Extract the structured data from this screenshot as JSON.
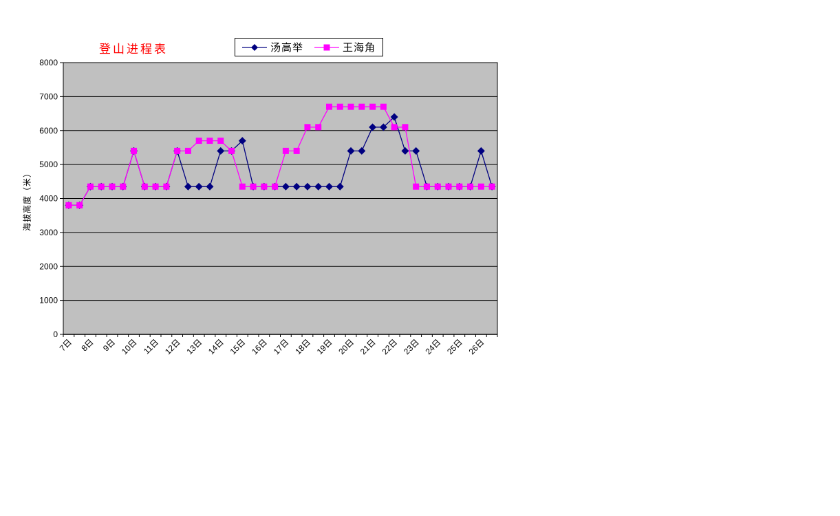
{
  "chart_data": {
    "type": "line",
    "title": "登山进程表",
    "title_color": "#ff0000",
    "ylabel": "海拔高度（米）",
    "ylim": [
      0,
      8000
    ],
    "y_ticks": [
      0,
      1000,
      2000,
      3000,
      4000,
      5000,
      6000,
      7000,
      8000
    ],
    "x_labels": [
      "7日",
      "8日",
      "9日",
      "10日",
      "11日",
      "12日",
      "13日",
      "14日",
      "15日",
      "16日",
      "17日",
      "18日",
      "19日",
      "20日",
      "21日",
      "22日",
      "23日",
      "24日",
      "25日",
      "26日"
    ],
    "x_label_interval": 2,
    "n_points": 40,
    "grid": "horizontal",
    "legend_position": "top",
    "plot_bg": "#c0c0c0",
    "gridline_color": "#000000",
    "series": [
      {
        "name": "汤高举",
        "color": "#000080",
        "marker": "diamond",
        "values": [
          3800,
          3800,
          4350,
          4350,
          4350,
          4350,
          5400,
          4350,
          4350,
          4350,
          5400,
          4350,
          4350,
          4350,
          5400,
          5400,
          5700,
          4350,
          4350,
          4350,
          4350,
          4350,
          4350,
          4350,
          4350,
          4350,
          5400,
          5400,
          6100,
          6100,
          6400,
          5400,
          5400,
          4350,
          4350,
          4350,
          4350,
          4350,
          5400,
          4350
        ]
      },
      {
        "name": "王海角",
        "color": "#ff00ff",
        "marker": "square",
        "values": [
          3800,
          3800,
          4350,
          4350,
          4350,
          4350,
          5400,
          4350,
          4350,
          4350,
          5400,
          5400,
          5700,
          5700,
          5700,
          5400,
          4350,
          4350,
          4350,
          4350,
          5400,
          5400,
          6100,
          6100,
          6700,
          6700,
          6700,
          6700,
          6700,
          6700,
          6100,
          6100,
          4350,
          4350,
          4350,
          4350,
          4350,
          4350,
          4350,
          4350
        ]
      }
    ]
  }
}
